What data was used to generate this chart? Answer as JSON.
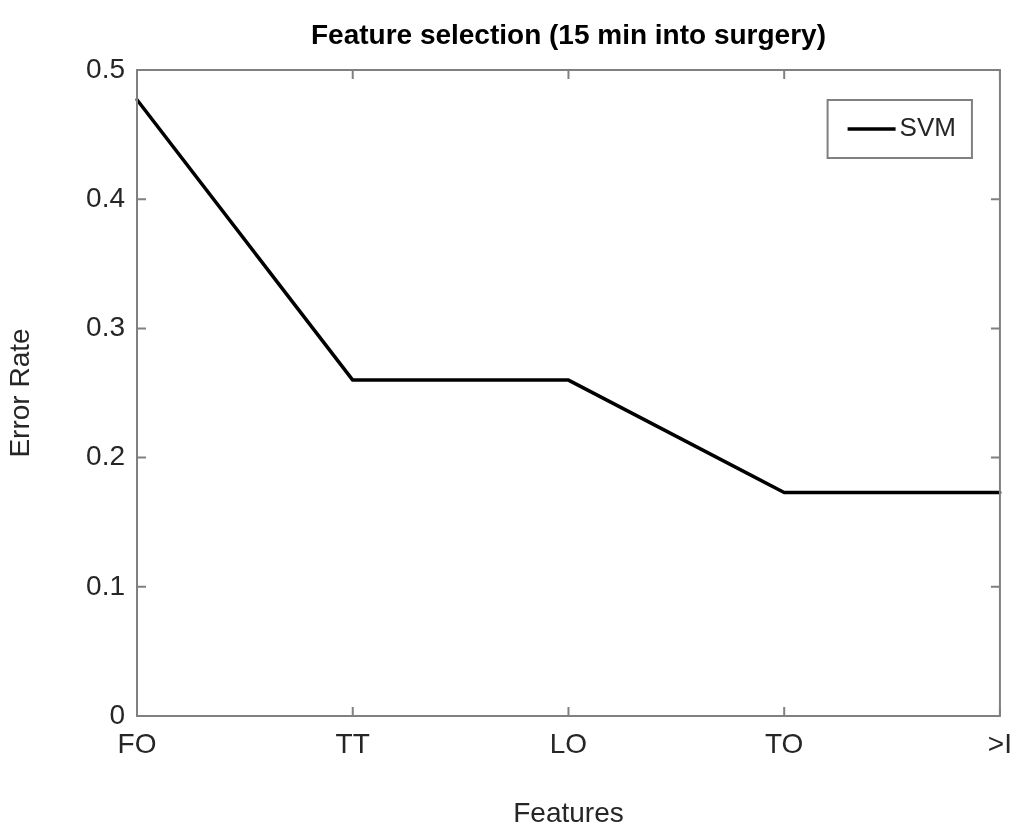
{
  "chart_data": {
    "type": "line",
    "title": "Feature selection (15 min into surgery)",
    "xlabel": "Features",
    "ylabel": "Error Rate",
    "categories": [
      "FO",
      "TT",
      "LO",
      "TO",
      ">I"
    ],
    "series": [
      {
        "name": "SVM",
        "color": "#000000",
        "values": [
          0.477,
          0.26,
          0.26,
          0.173,
          0.173
        ]
      }
    ],
    "ylim": [
      0,
      0.5
    ],
    "yticks": [
      0,
      0.1,
      0.2,
      0.3,
      0.4,
      0.5
    ],
    "grid": false,
    "legend": "top right",
    "marker": "none",
    "line_style": "solid"
  }
}
